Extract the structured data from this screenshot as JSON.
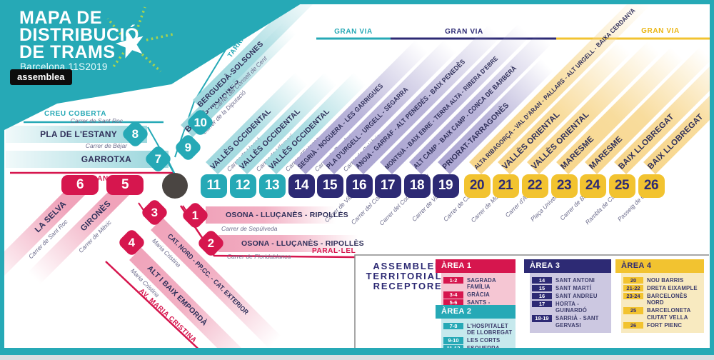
{
  "header": {
    "title_lines": [
      "MAPA DE",
      "DISTRIBUCIÓ",
      "DE TRAMS"
    ],
    "subtitle": "Barcelona,11S2019",
    "badge": "assemblea"
  },
  "map_labels": {
    "creu_coberta": "CREU COBERTA",
    "gran_via_left": "GRAN VIA",
    "tarragona": "TARRAGONA",
    "paral_lel": "PARAL·LEL",
    "av_maria_cristina": "AV. MARIA CRISTINA",
    "gran_via_top": [
      "GRAN VIA",
      "GRAN VIA",
      "GRAN VIA"
    ]
  },
  "colors": {
    "teal": "#26a9b6",
    "crimson": "#d6164e",
    "navy": "#2d2a74",
    "yellow": "#f2c330",
    "band_teal": "#9fd8de",
    "band_pink": "#f0a3ba",
    "band_lavender": "#aca6d2",
    "band_yellow": "#f7d68c",
    "hub": "#4a4542"
  },
  "routes": [
    {
      "n": 1,
      "name": "OSONA - LLUÇANÈS - RIPOLLÈS",
      "street": "Carrer de Sepúlveda"
    },
    {
      "n": 2,
      "name": "OSONA - LLUÇANÈS - RIPOLLÈS",
      "street": "Carrer de Floridablanca"
    },
    {
      "n": 3,
      "name": "CAT. NORD - PP.CC. - CAT. EXTERIOR",
      "street": "Maria Cristina"
    },
    {
      "n": 4,
      "name": "ALT I BAIX EMPORDÀ",
      "street": "Maria Cristina"
    },
    {
      "n": 5,
      "name": "GIRONÈS",
      "street": "Carrer de Mèxic"
    },
    {
      "n": 6,
      "name": "LA SELVA",
      "street": "Carrer de Sant Roc"
    },
    {
      "n": 7,
      "name": "GARROTXA",
      "street": "Carrer de Béjar"
    },
    {
      "n": 8,
      "name": "PLA DE L'ESTANY",
      "street": "Carrer de Sant Roc"
    },
    {
      "n": 9,
      "name": "BAGES-MOIANÈS",
      "street": "Carrer de la Diputació"
    },
    {
      "n": 10,
      "name": "BERGUEDÀ-SOLSONES",
      "street": "Carrer del Consell de Cent"
    },
    {
      "n": 11,
      "name": "VALLÈS OCCIDENTAL",
      "street": "Carrer de Llançà"
    },
    {
      "n": 12,
      "name": "VALLÈS OCCIDENTAL",
      "street": "Carrer de Vilamarí"
    },
    {
      "n": 13,
      "name": "VALLÈS OCCIDENTAL",
      "street": "Carrer d'Entença"
    },
    {
      "n": 14,
      "name": "SEGRIÀ - NOGUERA - LES GARRIGUES",
      "street": "Carrer de Rocafort"
    },
    {
      "n": 15,
      "name": "PLA D'URGELL - URGELL - SEGARRA",
      "street": "Carrer de Calàbria"
    },
    {
      "n": 16,
      "name": "ANOIA - GARRAF - ALT PENEDÈS - BAIX PENEDÈS",
      "street": "Carrer de Viladomat"
    },
    {
      "n": 17,
      "name": "MONTSIÀ - BAIX EBRE - TERRA ALTA - RIBERA D'EBRE",
      "street": "Carrer del Comte Borrell"
    },
    {
      "n": 18,
      "name": "ALT CAMP - BAIX CAMP - CONCA DE BARBERÀ",
      "street": "Carrer del Comte d'Urgell"
    },
    {
      "n": 19,
      "name": "PRIORAT-TARRAGONÈS",
      "street": "Carrer de Villarroel"
    },
    {
      "n": 20,
      "name": "ALTA RIBAGORÇA - VAL D'ARAN - PALLARS - ALT URGELL - BAIXA CERDANYA",
      "street": "Carrer de Casanova"
    },
    {
      "n": 21,
      "name": "VALLÈS ORIENTAL",
      "street": "Carrer de Muntaner"
    },
    {
      "n": 22,
      "name": "VALLÈS ORIENTAL",
      "street": "Carrer d'Aribau"
    },
    {
      "n": 23,
      "name": "MARESME",
      "street": "Plaça Universitat"
    },
    {
      "n": 24,
      "name": "MARESME",
      "street": "Carrer de Balmes"
    },
    {
      "n": 25,
      "name": "BAIX LLOBREGAT",
      "street": "Rambla de Catalunya"
    },
    {
      "n": 26,
      "name": "BAIX LLOBREGAT",
      "street": "Passeig de Gràcia"
    }
  ],
  "legend": {
    "title_lines": [
      "ASSEMBLEES",
      "TERRITORIALS",
      "RECEPTORES"
    ],
    "areas": [
      {
        "label": "ÀREA 1",
        "color": "#d6164e",
        "text": "#ffffff",
        "bg": "#f5c6d3",
        "rows": [
          [
            "1-2",
            "SAGRADA FAMÍLIA"
          ],
          [
            "3-4",
            "GRÀCIA"
          ],
          [
            "5-6",
            "SANTS - MONTJUÏC|POBLE - SEC"
          ]
        ]
      },
      {
        "label": "ÀREA 2",
        "color": "#26a9b6",
        "text": "#ffffff",
        "bg": "#c6e9ed",
        "rows": [
          [
            "7-8",
            "L'HOSPITALET|DE LLOBREGAT"
          ],
          [
            "9-10",
            "LES CORTS"
          ],
          [
            "11-13",
            "ESQUERRA EIXAMPLE"
          ]
        ]
      },
      {
        "label": "ÀREA 3",
        "color": "#2d2a74",
        "text": "#ffffff",
        "bg": "#ccc8e1",
        "rows": [
          [
            "14",
            "SANT ANTONI"
          ],
          [
            "15",
            "SANT MARTÍ"
          ],
          [
            "16",
            "SANT ANDREU"
          ],
          [
            "17",
            "HORTA - GUINARDÓ"
          ],
          [
            "18-19",
            "SARRIÀ - SANT GERVASI"
          ]
        ]
      },
      {
        "label": "ÀREA 4",
        "color": "#f2c330",
        "text": "#2d2a74",
        "bg": "#f8eac0",
        "rows": [
          [
            "20",
            "NOU BARRIS"
          ],
          [
            "21-22",
            "DRETA EIXAMPLE"
          ],
          [
            "23-24",
            "BARCELONÈS NORD"
          ],
          [
            "25",
            "BARCELONETA|CIUTAT VELLA"
          ],
          [
            "26",
            "FORT PIENC"
          ]
        ]
      }
    ]
  }
}
